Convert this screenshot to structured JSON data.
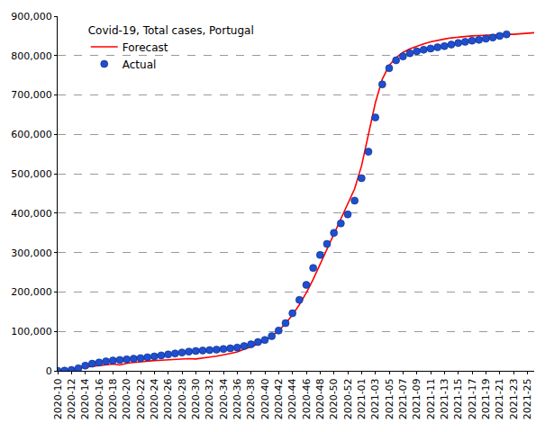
{
  "chart_data": {
    "type": "line",
    "title": "Covid-19, Total cases, Portugal",
    "legend": "top left",
    "grid": true,
    "categories": [
      "2020-10",
      null,
      "2020-12",
      null,
      "2020-14",
      null,
      "2020-16",
      null,
      "2020-18",
      null,
      "2020-20",
      null,
      "2020-22",
      null,
      "2020-24",
      null,
      "2020-26",
      null,
      "2020-28",
      null,
      "2020-30",
      null,
      "2020-32",
      null,
      "2020-34",
      null,
      "2020-36",
      null,
      "2020-38",
      null,
      "2020-40",
      null,
      "2020-42",
      null,
      "2020-44",
      null,
      "2020-46",
      null,
      "2020-48",
      null,
      "2020-50",
      null,
      "2020-52",
      null,
      "2021-01",
      null,
      "2021-03",
      null,
      "2021-05",
      null,
      "2021-07",
      null,
      "2021-09",
      null,
      "2021-11",
      null,
      "2021-13",
      null,
      "2021-15",
      null,
      "2021-17",
      null,
      "2021-19",
      null,
      "2021-21",
      null,
      "2021-23",
      null,
      "2021-25",
      null
    ],
    "series": [
      {
        "name": "Forecast",
        "type": "line",
        "color": "#ff0000",
        "line_style": "solid",
        "values": [
          0,
          500,
          3000,
          7000,
          9000,
          11000,
          14000,
          16000,
          17000,
          15000,
          19000,
          21000,
          23000,
          25000,
          26000,
          27000,
          28000,
          29000,
          30000,
          31000,
          30000,
          33000,
          35000,
          37000,
          40000,
          44000,
          48000,
          54000,
          61000,
          68000,
          76000,
          88000,
          102000,
          120000,
          142000,
          168000,
          198000,
          232000,
          270000,
          308000,
          345000,
          382000,
          420000,
          462000,
          520000,
          600000,
          680000,
          740000,
          775000,
          795000,
          808000,
          817000,
          824000,
          830000,
          835000,
          839000,
          842000,
          845000,
          847000,
          849000,
          850000,
          851000,
          852000,
          853000,
          853000,
          854000,
          854000,
          855000,
          856000,
          858000
        ]
      },
      {
        "name": "Actual",
        "type": "scatter",
        "color": "#1f4fd0",
        "marker": "circle",
        "values": [
          30,
          450,
          2000,
          6400,
          13000,
          18000,
          21000,
          24000,
          26000,
          27600,
          29000,
          30600,
          32200,
          34300,
          36500,
          39100,
          41600,
          43900,
          46500,
          48800,
          50300,
          51600,
          52600,
          53800,
          55200,
          57000,
          59000,
          62800,
          67200,
          72900,
          78200,
          87900,
          102000,
          121000,
          146000,
          180000,
          218000,
          261000,
          294000,
          322000,
          350000,
          374000,
          397000,
          432000,
          489000,
          556000,
          643000,
          727000,
          768000,
          788000,
          798000,
          806000,
          811000,
          815000,
          818000,
          821000,
          824000,
          828000,
          832000,
          835000,
          838000,
          840000,
          843000,
          846000,
          850000,
          854000,
          null,
          null,
          null,
          null
        ]
      }
    ],
    "ylim": [
      0,
      900000
    ],
    "yticks": [
      0,
      {
        "value": 100000,
        "label": "100,000"
      },
      {
        "value": 200000,
        "label": "200,000"
      },
      {
        "value": 300000,
        "label": "300,000"
      },
      {
        "value": 400000,
        "label": "400,000"
      },
      {
        "value": 500000,
        "label": "500,000"
      },
      {
        "value": 600000,
        "label": "600,000"
      },
      {
        "value": 700000,
        "label": "700,000"
      },
      {
        "value": 800000,
        "label": "800,000"
      },
      {
        "value": 900000,
        "label": "900,000"
      }
    ]
  }
}
